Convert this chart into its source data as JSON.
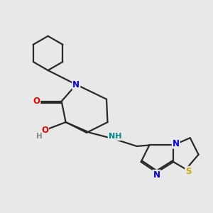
{
  "background_color": "#e8e8e8",
  "bond_color": "#2a2a2a",
  "bond_width": 1.6,
  "atom_colors": {
    "N": "#0000ee",
    "O": "#ee0000",
    "S": "#ccaa00",
    "NH": "#008888",
    "H": "#888888",
    "C": "#2a2a2a"
  },
  "font_size_atom": 8.5,
  "fig_bg": "#e8e8e8"
}
